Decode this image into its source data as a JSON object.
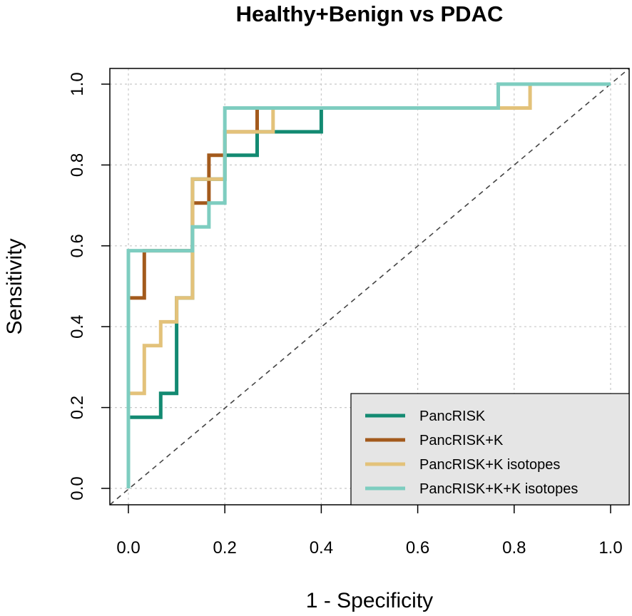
{
  "chart_data": {
    "type": "line",
    "title": "Healthy+Benign vs PDAC",
    "xlabel": "1 - Specificity",
    "ylabel": "Sensitivity",
    "xlim": [
      0,
      1
    ],
    "ylim": [
      0,
      1
    ],
    "xticks": [
      "0.0",
      "0.2",
      "0.4",
      "0.6",
      "0.8",
      "1.0"
    ],
    "yticks": [
      "0.0",
      "0.2",
      "0.4",
      "0.6",
      "0.8",
      "1.0"
    ],
    "grid": true,
    "legend_position": "bottom-right",
    "reference_line": {
      "style": "dashed",
      "from": [
        0,
        0
      ],
      "to": [
        1,
        1
      ],
      "color": "#444444"
    },
    "series": [
      {
        "name": "PancRISK",
        "color": "#138a72",
        "points": [
          [
            0,
            0
          ],
          [
            0,
            0.176
          ],
          [
            0.067,
            0.176
          ],
          [
            0.067,
            0.235
          ],
          [
            0.1,
            0.235
          ],
          [
            0.1,
            0.471
          ],
          [
            0.133,
            0.471
          ],
          [
            0.133,
            0.765
          ],
          [
            0.2,
            0.765
          ],
          [
            0.2,
            0.824
          ],
          [
            0.267,
            0.824
          ],
          [
            0.267,
            0.882
          ],
          [
            0.4,
            0.882
          ],
          [
            0.4,
            0.941
          ],
          [
            0.767,
            0.941
          ],
          [
            0.767,
            1
          ],
          [
            1,
            1
          ]
        ]
      },
      {
        "name": "PancRISK+K",
        "color": "#a35a1c",
        "points": [
          [
            0,
            0
          ],
          [
            0,
            0.471
          ],
          [
            0.033,
            0.471
          ],
          [
            0.033,
            0.588
          ],
          [
            0.133,
            0.588
          ],
          [
            0.133,
            0.706
          ],
          [
            0.167,
            0.706
          ],
          [
            0.167,
            0.824
          ],
          [
            0.2,
            0.824
          ],
          [
            0.2,
            0.882
          ],
          [
            0.267,
            0.882
          ],
          [
            0.267,
            0.941
          ],
          [
            0.767,
            0.941
          ],
          [
            0.767,
            1
          ],
          [
            1,
            1
          ]
        ]
      },
      {
        "name": "PancRISK+K isotopes",
        "color": "#e3c27a",
        "points": [
          [
            0,
            0
          ],
          [
            0,
            0.235
          ],
          [
            0.033,
            0.235
          ],
          [
            0.033,
            0.353
          ],
          [
            0.067,
            0.353
          ],
          [
            0.067,
            0.412
          ],
          [
            0.1,
            0.412
          ],
          [
            0.1,
            0.471
          ],
          [
            0.133,
            0.471
          ],
          [
            0.133,
            0.765
          ],
          [
            0.2,
            0.765
          ],
          [
            0.2,
            0.882
          ],
          [
            0.3,
            0.882
          ],
          [
            0.3,
            0.941
          ],
          [
            0.833,
            0.941
          ],
          [
            0.833,
            1
          ],
          [
            1,
            1
          ]
        ]
      },
      {
        "name": "PancRISK+K+K isotopes",
        "color": "#7ecdc0",
        "points": [
          [
            0,
            0
          ],
          [
            0,
            0.588
          ],
          [
            0.133,
            0.588
          ],
          [
            0.133,
            0.647
          ],
          [
            0.167,
            0.647
          ],
          [
            0.167,
            0.706
          ],
          [
            0.2,
            0.706
          ],
          [
            0.2,
            0.941
          ],
          [
            0.767,
            0.941
          ],
          [
            0.767,
            1
          ],
          [
            1,
            1
          ]
        ]
      }
    ]
  }
}
